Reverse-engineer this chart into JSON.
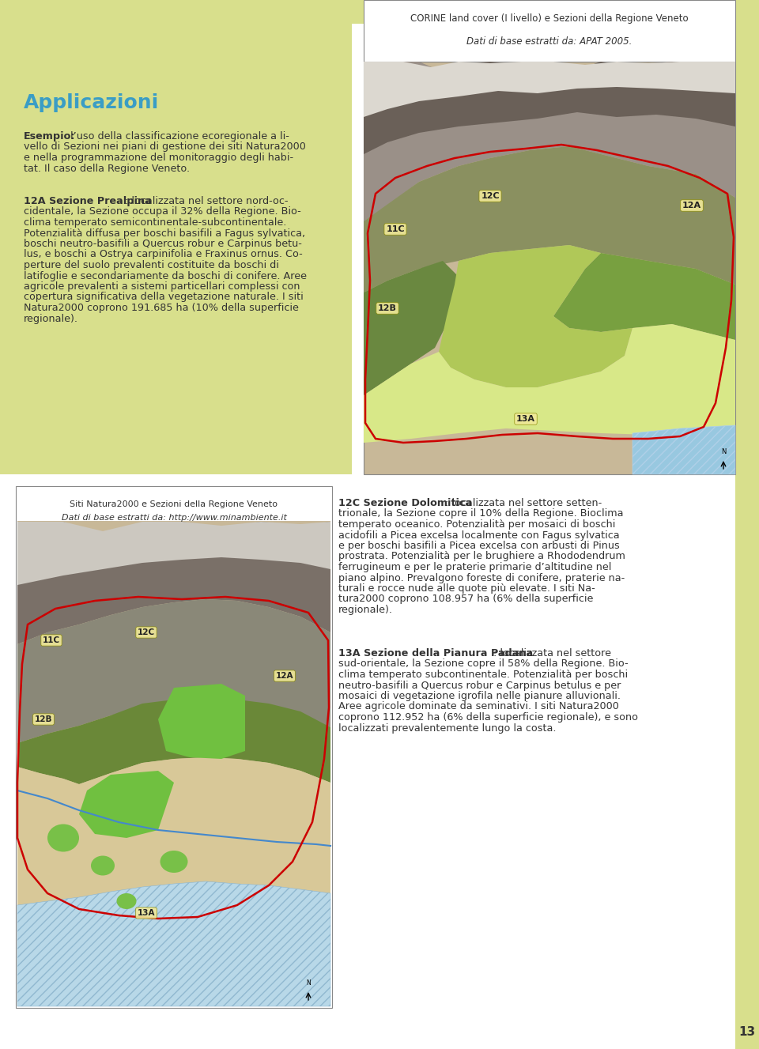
{
  "page_bg": "#ffffff",
  "top_left_bg": "#d8df8c",
  "page_num_bg": "#d8df8c",
  "page_number": "13",
  "top_caption_line1": "CORINE land cover (I livello) e Sezioni della Regione Veneto",
  "top_caption_line2": "Dati di base estratti da: APAT 2005.",
  "heading": "Applicazioni",
  "heading_color": "#3a9dc5",
  "bottom_left_caption_line1": "Siti Natura2000 e Sezioni della Regione Veneto",
  "bottom_left_caption_line2": "Dati di base estratti da: http://www.minambiente.it",
  "text_color": "#333333",
  "map_bg_tan": "#c8b898",
  "map_bg_light": "#ddd0b0",
  "map_rock_dark": "#7a7068",
  "map_rock_med": "#9a9088",
  "map_forest_green": "#5a7838",
  "map_green_bright": "#a8c840",
  "map_yellow_green": "#d8e070",
  "map_plain_yellow": "#e8e898",
  "map_sea_blue": "#98c8e0",
  "map_sea_stripe": "#c8dff0",
  "map_label_bg": "#f0e898",
  "border_color": "#888888",
  "red_outline": "#cc0000",
  "caption_box_bg": "#f8f5ee"
}
